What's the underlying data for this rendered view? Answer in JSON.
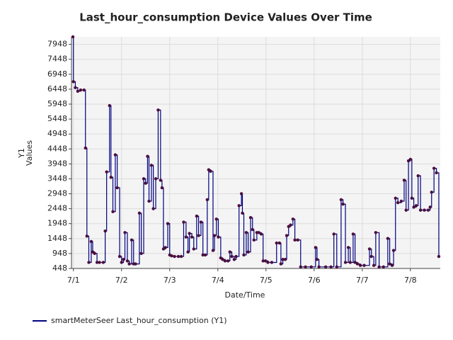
{
  "chart_data": {
    "type": "line",
    "step": "post",
    "title": "Last_hour_consumption Device Values Over Time",
    "xlabel": "Date/Time",
    "ylabel": [
      "Y1",
      "Values"
    ],
    "grid": true,
    "legend": "bottom-left",
    "xlim": [
      -0.04,
      7.62
    ],
    "xticks": [
      {
        "value": 0,
        "label": "7/1"
      },
      {
        "value": 1,
        "label": "7/2"
      },
      {
        "value": 2,
        "label": "7/3"
      },
      {
        "value": 3,
        "label": "7/4"
      },
      {
        "value": 4,
        "label": "7/5"
      },
      {
        "value": 5,
        "label": "7/6"
      },
      {
        "value": 6,
        "label": "7/7"
      },
      {
        "value": 7,
        "label": "7/8"
      }
    ],
    "ylim": [
      448,
      8200
    ],
    "yticks": [
      448,
      948,
      1448,
      1948,
      2448,
      2948,
      3448,
      3948,
      4448,
      4948,
      5448,
      5948,
      6448,
      6948,
      7448,
      7948
    ],
    "x": [
      -0.01,
      0.0,
      0.04,
      0.09,
      0.15,
      0.22,
      0.25,
      0.28,
      0.32,
      0.37,
      0.4,
      0.44,
      0.49,
      0.54,
      0.62,
      0.66,
      0.69,
      0.75,
      0.78,
      0.82,
      0.87,
      0.91,
      0.96,
      1.0,
      1.04,
      1.07,
      1.12,
      1.16,
      1.21,
      1.25,
      1.29,
      1.37,
      1.41,
      1.46,
      1.5,
      1.54,
      1.57,
      1.62,
      1.66,
      1.71,
      1.76,
      1.81,
      1.84,
      1.87,
      1.91,
      1.96,
      2.0,
      2.04,
      2.1,
      2.18,
      2.24,
      2.29,
      2.34,
      2.38,
      2.41,
      2.46,
      2.5,
      2.56,
      2.6,
      2.65,
      2.69,
      2.74,
      2.78,
      2.81,
      2.85,
      2.9,
      2.93,
      2.97,
      3.01,
      3.06,
      3.1,
      3.15,
      3.21,
      3.25,
      3.29,
      3.34,
      3.38,
      3.44,
      3.49,
      3.51,
      3.54,
      3.59,
      3.63,
      3.68,
      3.72,
      3.75,
      3.81,
      3.85,
      3.9,
      3.94,
      3.99,
      4.04,
      4.12,
      4.22,
      4.28,
      4.31,
      4.35,
      4.4,
      4.43,
      4.47,
      4.51,
      4.56,
      4.6,
      4.66,
      4.72,
      4.82,
      4.94,
      5.03,
      5.06,
      5.1,
      5.24,
      5.35,
      5.41,
      5.47,
      5.56,
      5.6,
      5.65,
      5.71,
      5.75,
      5.81,
      5.85,
      5.9,
      5.96,
      6.04,
      6.15,
      6.19,
      6.24,
      6.28,
      6.35,
      6.44,
      6.53,
      6.57,
      6.62,
      6.65,
      6.69,
      6.74,
      6.81,
      6.87,
      6.91,
      6.96,
      7.0,
      7.03,
      7.07,
      7.12,
      7.16,
      7.21,
      7.29,
      7.37,
      7.41,
      7.44,
      7.49,
      7.54,
      7.59
    ],
    "series": [
      {
        "name": "smartMeterSeer Last_hour_consumption (Y1)",
        "color": "#000080",
        "marker_color": "#4b0f3e",
        "values": [
          8200,
          6700,
          6500,
          6380,
          6420,
          6420,
          4480,
          1530,
          650,
          1350,
          1000,
          950,
          650,
          650,
          650,
          1700,
          3680,
          5900,
          3500,
          2350,
          4250,
          3150,
          850,
          650,
          750,
          1650,
          700,
          600,
          1400,
          600,
          600,
          2300,
          950,
          3450,
          3300,
          4200,
          2700,
          3900,
          2450,
          3450,
          5750,
          3400,
          3150,
          1100,
          1150,
          1950,
          900,
          870,
          850,
          850,
          850,
          2000,
          1500,
          1000,
          1620,
          1500,
          1100,
          2200,
          1550,
          2000,
          900,
          900,
          2750,
          3750,
          3700,
          1050,
          1550,
          2100,
          1500,
          800,
          750,
          700,
          700,
          1000,
          850,
          750,
          850,
          2550,
          2950,
          2300,
          900,
          1650,
          1000,
          2150,
          1750,
          1400,
          1650,
          1650,
          1600,
          700,
          700,
          650,
          650,
          1300,
          1300,
          600,
          750,
          750,
          1550,
          1850,
          1900,
          2100,
          1400,
          1400,
          500,
          500,
          500,
          1150,
          750,
          500,
          500,
          500,
          1600,
          500,
          2750,
          2600,
          650,
          1150,
          650,
          1600,
          650,
          600,
          550,
          550,
          1100,
          850,
          550,
          1650,
          500,
          500,
          1450,
          600,
          550,
          1050,
          2800,
          2650,
          2700,
          3400,
          2400,
          4050,
          4100,
          2800,
          2500,
          2550,
          3550,
          2400,
          2400,
          2400,
          2500,
          3000,
          3800,
          3650,
          850
        ]
      }
    ]
  }
}
